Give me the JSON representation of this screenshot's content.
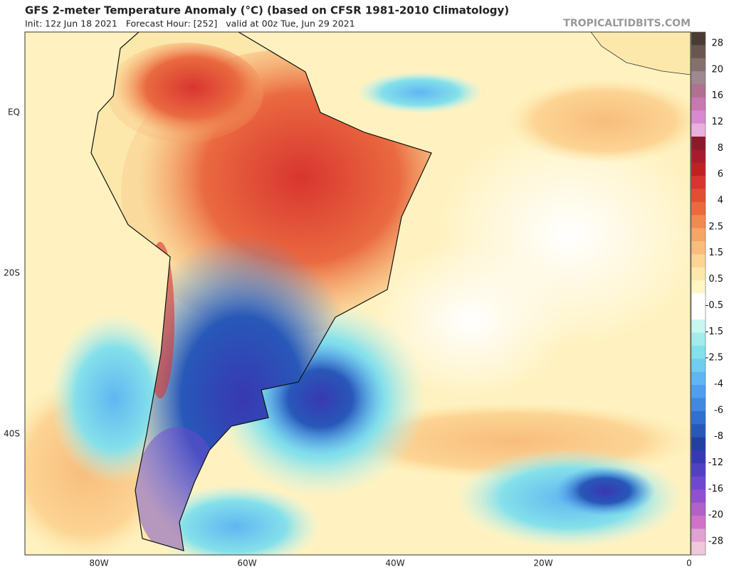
{
  "header": {
    "title": "GFS 2-meter Temperature Anomaly (°C) (based on CFSR 1981-2010 Climatology)",
    "info": "Init: 12z Jun 18 2021   Forecast Hour: [252]   valid at 00z Tue, Jun 29 2021",
    "credit": "TROPICALTIDBITS.COM"
  },
  "map": {
    "lat_labels": [
      "EQ",
      "20S",
      "40S"
    ],
    "lon_labels": [
      "80W",
      "60W",
      "40W",
      "20W",
      "0"
    ]
  },
  "colorbar": {
    "labels": [
      28,
      20,
      16,
      12,
      8,
      6,
      4,
      2.5,
      1.5,
      0.5,
      -0.5,
      -1.5,
      -2.5,
      -4,
      -6,
      -8,
      -12,
      -16,
      -20,
      -28
    ],
    "colors": [
      "#4a3b35",
      "#6b5550",
      "#85706c",
      "#a08890",
      "#b07090",
      "#c878b0",
      "#d88ad0",
      "#e8b0dc",
      "#8b1a2a",
      "#a61c2c",
      "#c02222",
      "#d83530",
      "#e24e32",
      "#ea6a40",
      "#f08a50",
      "#f5a565",
      "#f8bd7c",
      "#fcd494",
      "#fde8ac",
      "#fff6c4",
      "#ffffff",
      "#ffffff",
      "#c8f6f0",
      "#a2ecec",
      "#84e0ea",
      "#70cdee",
      "#60b6f2",
      "#509ef0",
      "#4088e0",
      "#3070d0",
      "#2858b8",
      "#2240a2",
      "#3838b2",
      "#5040c2",
      "#7048d0",
      "#9050d0",
      "#b062c8",
      "#d072c8",
      "#e0a2d2",
      "#f0c8dc"
    ]
  }
}
